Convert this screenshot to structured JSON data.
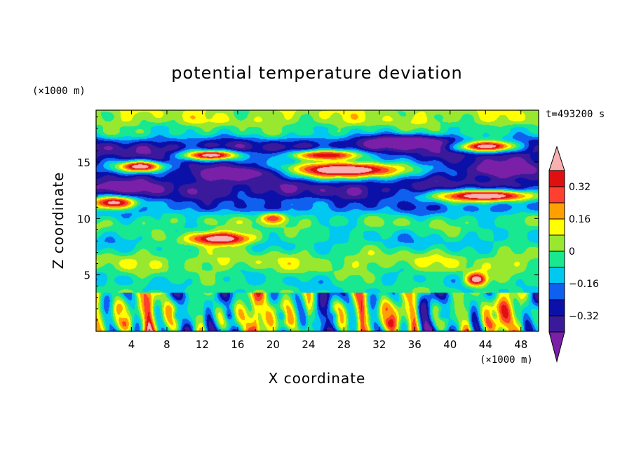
{
  "chart_data": {
    "type": "heatmap",
    "title": "potential temperature deviation",
    "time_label": "t=493200 s",
    "xlabel": "X coordinate",
    "ylabel": "Z coordinate",
    "x_unit": "(×1000 m)",
    "y_unit": "(×1000 m)",
    "xlim": [
      0,
      50
    ],
    "ylim": [
      0,
      19.6
    ],
    "xticks": [
      4,
      8,
      12,
      16,
      20,
      24,
      28,
      32,
      36,
      40,
      44,
      48
    ],
    "xtick_labels": [
      "4",
      "8",
      "12",
      "16",
      "20",
      "24",
      "28",
      "32",
      "36",
      "40",
      "44",
      "48"
    ],
    "yticks": [
      5,
      10,
      15
    ],
    "ytick_labels": [
      "5",
      "10",
      "15"
    ],
    "colorbar": {
      "levels": [
        -0.4,
        -0.32,
        -0.24,
        -0.16,
        -0.08,
        0,
        0.08,
        0.16,
        0.24,
        0.32,
        0.4
      ],
      "tick_values": [
        -0.32,
        -0.16,
        0,
        0.16,
        0.32
      ],
      "tick_labels": [
        "−0.32",
        "−0.16",
        "0",
        "0.16",
        "0.32"
      ],
      "colors": [
        "#7a1fa8",
        "#3a1a9a",
        "#0a10a8",
        "#1060f0",
        "#00c8f0",
        "#18e890",
        "#98e830",
        "#ffff00",
        "#ffa000",
        "#ff4030",
        "#e01010",
        "#f8b0b0"
      ],
      "extend": "both"
    },
    "pattern": {
      "background_value": 0.02,
      "bands": [
        {
          "z": 18.8,
          "value": 0.06
        },
        {
          "z": 17.8,
          "value": -0.04
        },
        {
          "z": 16.2,
          "value": -0.36
        },
        {
          "z": 14.4,
          "value": -0.28
        },
        {
          "z": 12.6,
          "value": -0.36
        },
        {
          "z": 11.2,
          "value": -0.22
        },
        {
          "z": 9.6,
          "value": -0.02
        },
        {
          "z": 8.0,
          "value": -0.1
        },
        {
          "z": 6.2,
          "value": 0.05
        },
        {
          "z": 4.4,
          "value": -0.07
        },
        {
          "z": 1.8,
          "value": 0.0
        }
      ],
      "features": [
        {
          "x": 5,
          "z": 14.6,
          "sx": 2.6,
          "sz": 0.5,
          "value": 0.5
        },
        {
          "x": 13,
          "z": 15.6,
          "sx": 3.2,
          "sz": 0.45,
          "value": 0.48
        },
        {
          "x": 28,
          "z": 14.3,
          "sx": 7.5,
          "sz": 0.75,
          "value": 0.55
        },
        {
          "x": 26,
          "z": 15.6,
          "sx": 4.5,
          "sz": 0.5,
          "value": 0.4
        },
        {
          "x": 44,
          "z": 12.0,
          "sx": 6.0,
          "sz": 0.55,
          "value": 0.52
        },
        {
          "x": 44,
          "z": 16.4,
          "sx": 3.5,
          "sz": 0.5,
          "value": 0.5
        },
        {
          "x": 2,
          "z": 11.4,
          "sx": 2.6,
          "sz": 0.6,
          "value": 0.45
        },
        {
          "x": 14,
          "z": 8.2,
          "sx": 3.8,
          "sz": 0.6,
          "value": 0.5
        },
        {
          "x": 16,
          "z": 14.0,
          "sx": 5.0,
          "sz": 0.7,
          "value": -0.5
        },
        {
          "x": 35,
          "z": 16.8,
          "sx": 5.0,
          "sz": 0.6,
          "value": -0.55
        },
        {
          "x": 46,
          "z": 14.4,
          "sx": 4.0,
          "sz": 0.7,
          "value": -0.55
        },
        {
          "x": 3,
          "z": 12.8,
          "sx": 4.0,
          "sz": 0.6,
          "value": -0.45
        },
        {
          "x": 43,
          "z": 4.6,
          "sx": 1.2,
          "sz": 0.6,
          "value": 0.5
        },
        {
          "x": 20,
          "z": 10.0,
          "sx": 1.6,
          "sz": 0.5,
          "value": 0.3
        }
      ],
      "surface_layer_top_z": 3.4,
      "surface_amplitude": 0.38
    }
  }
}
